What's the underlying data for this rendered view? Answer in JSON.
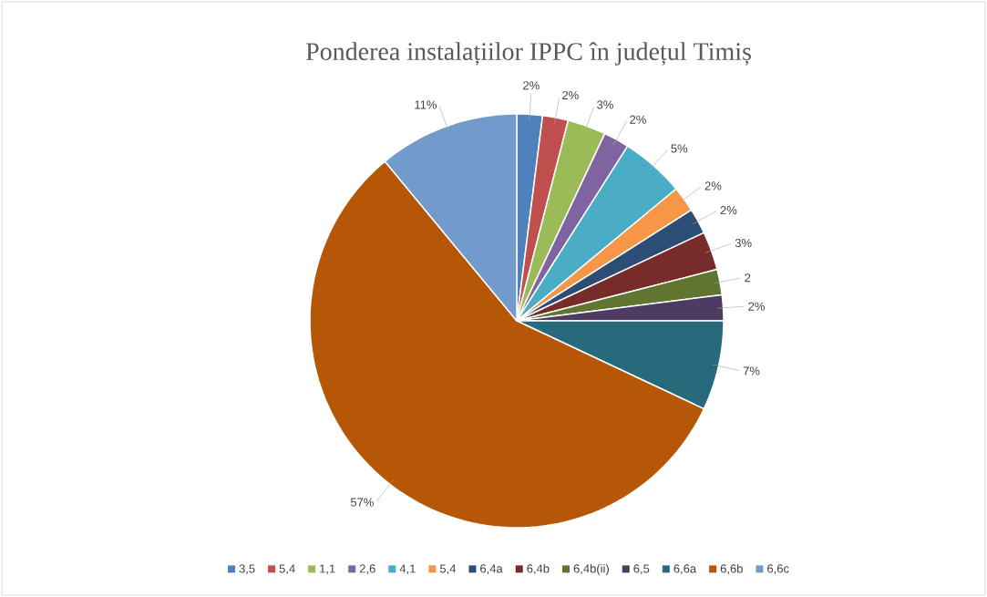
{
  "chart_data": {
    "type": "pie",
    "title": "Ponderea instalațiilor IPPC în județul Timiș",
    "categories": [
      "3,5",
      "5,4",
      "1,1",
      "2,6",
      "4,1",
      "5,4",
      "6,4a",
      "6,4b",
      "6,4b(ii)",
      "6,5",
      "6,6a",
      "6,6b",
      "6,6c"
    ],
    "values": [
      2,
      2,
      3,
      2,
      5,
      2,
      2,
      3,
      2,
      2,
      7,
      57,
      11
    ],
    "value_labels": [
      "2%",
      "2%",
      "3%",
      "2%",
      "5%",
      "2%",
      "2%",
      "3%",
      "2",
      "2%",
      "7%",
      "57%",
      "11%"
    ],
    "colors": [
      "#4f81bd",
      "#c0504d",
      "#9bbb59",
      "#8064a2",
      "#4bacc6",
      "#f79646",
      "#2c4d75",
      "#772c2a",
      "#5f7530",
      "#4d3b62",
      "#276a7c",
      "#b65708",
      "#729aca"
    ],
    "legend": "bottom"
  }
}
